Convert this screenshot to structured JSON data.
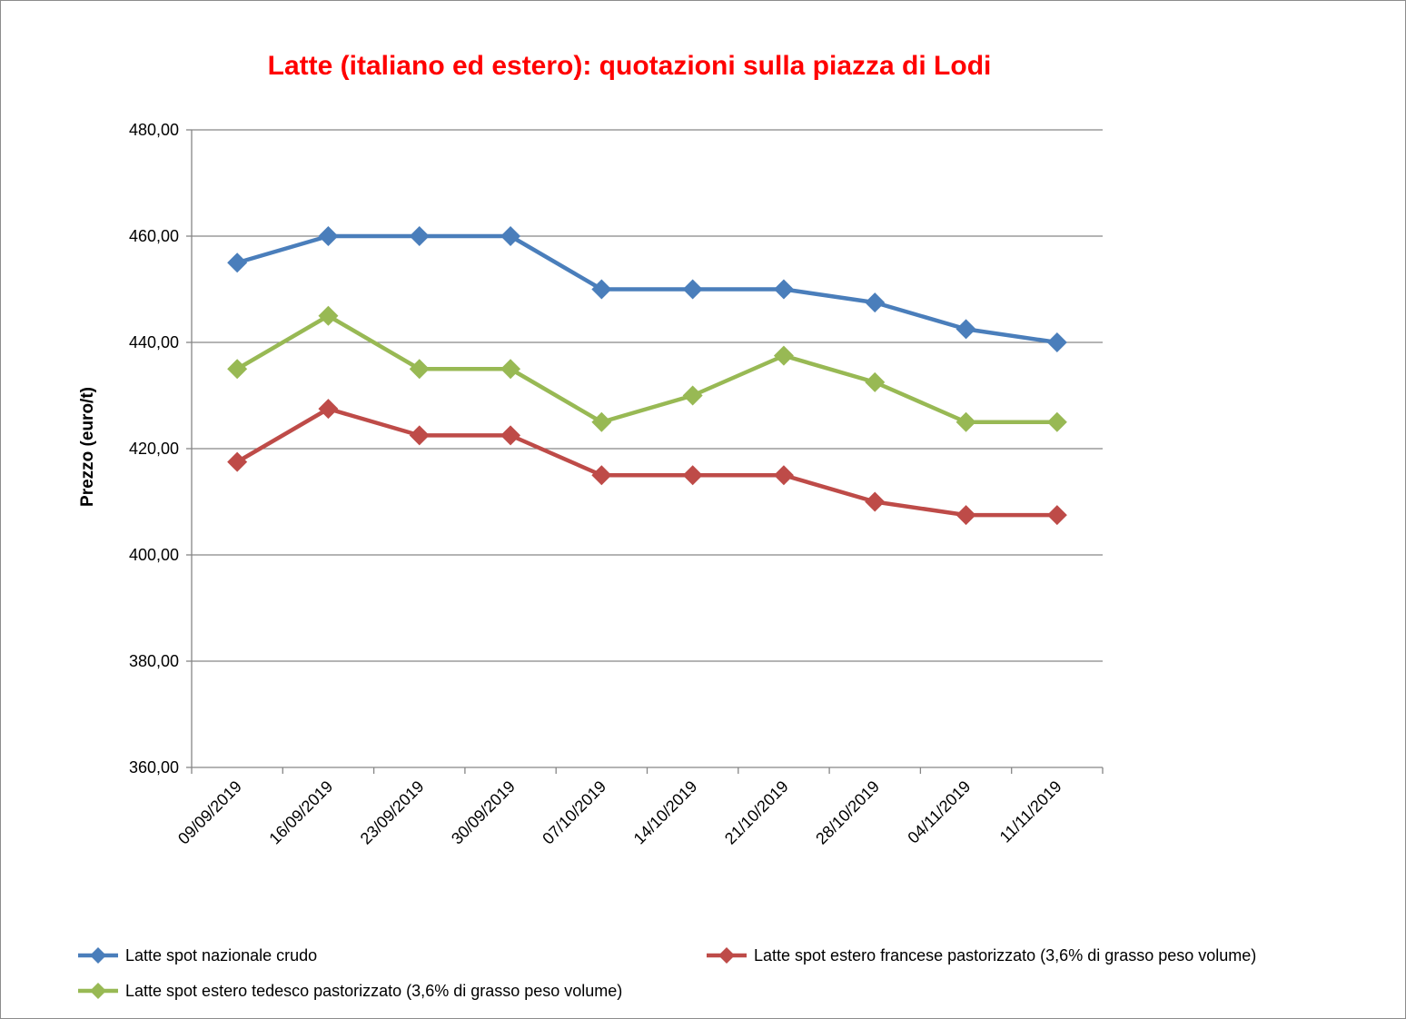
{
  "chart_data": {
    "type": "line",
    "title": "Latte (italiano ed estero): quotazioni sulla piazza di Lodi",
    "xlabel": "",
    "ylabel": "Prezzo (euro/t)",
    "categories": [
      "09/09/2019",
      "16/09/2019",
      "23/09/2019",
      "30/09/2019",
      "07/10/2019",
      "14/10/2019",
      "21/10/2019",
      "28/10/2019",
      "04/11/2019",
      "11/11/2019"
    ],
    "ylim": [
      360,
      480
    ],
    "yticks": [
      "360,00",
      "380,00",
      "400,00",
      "420,00",
      "440,00",
      "460,00",
      "480,00"
    ],
    "ytick_values": [
      360,
      380,
      400,
      420,
      440,
      460,
      480
    ],
    "grid": true,
    "legend_position": "bottom",
    "series": [
      {
        "name": "Latte spot nazionale crudo",
        "color": "#4a7ebb",
        "marker": "diamond",
        "values": [
          455,
          460,
          460,
          460,
          450,
          450,
          450,
          447.5,
          442.5,
          440
        ]
      },
      {
        "name": "Latte spot estero francese pastorizzato (3,6% di grasso peso volume)",
        "color": "#be4b48",
        "marker": "diamond",
        "values": [
          417.5,
          427.5,
          422.5,
          422.5,
          415,
          415,
          415,
          410,
          407.5,
          407.5
        ]
      },
      {
        "name": "Latte spot estero tedesco pastorizzato (3,6% di grasso peso volume)",
        "color": "#98b954",
        "marker": "diamond",
        "values": [
          435,
          445,
          435,
          435,
          425,
          430,
          437.5,
          432.5,
          425,
          425
        ]
      }
    ]
  }
}
